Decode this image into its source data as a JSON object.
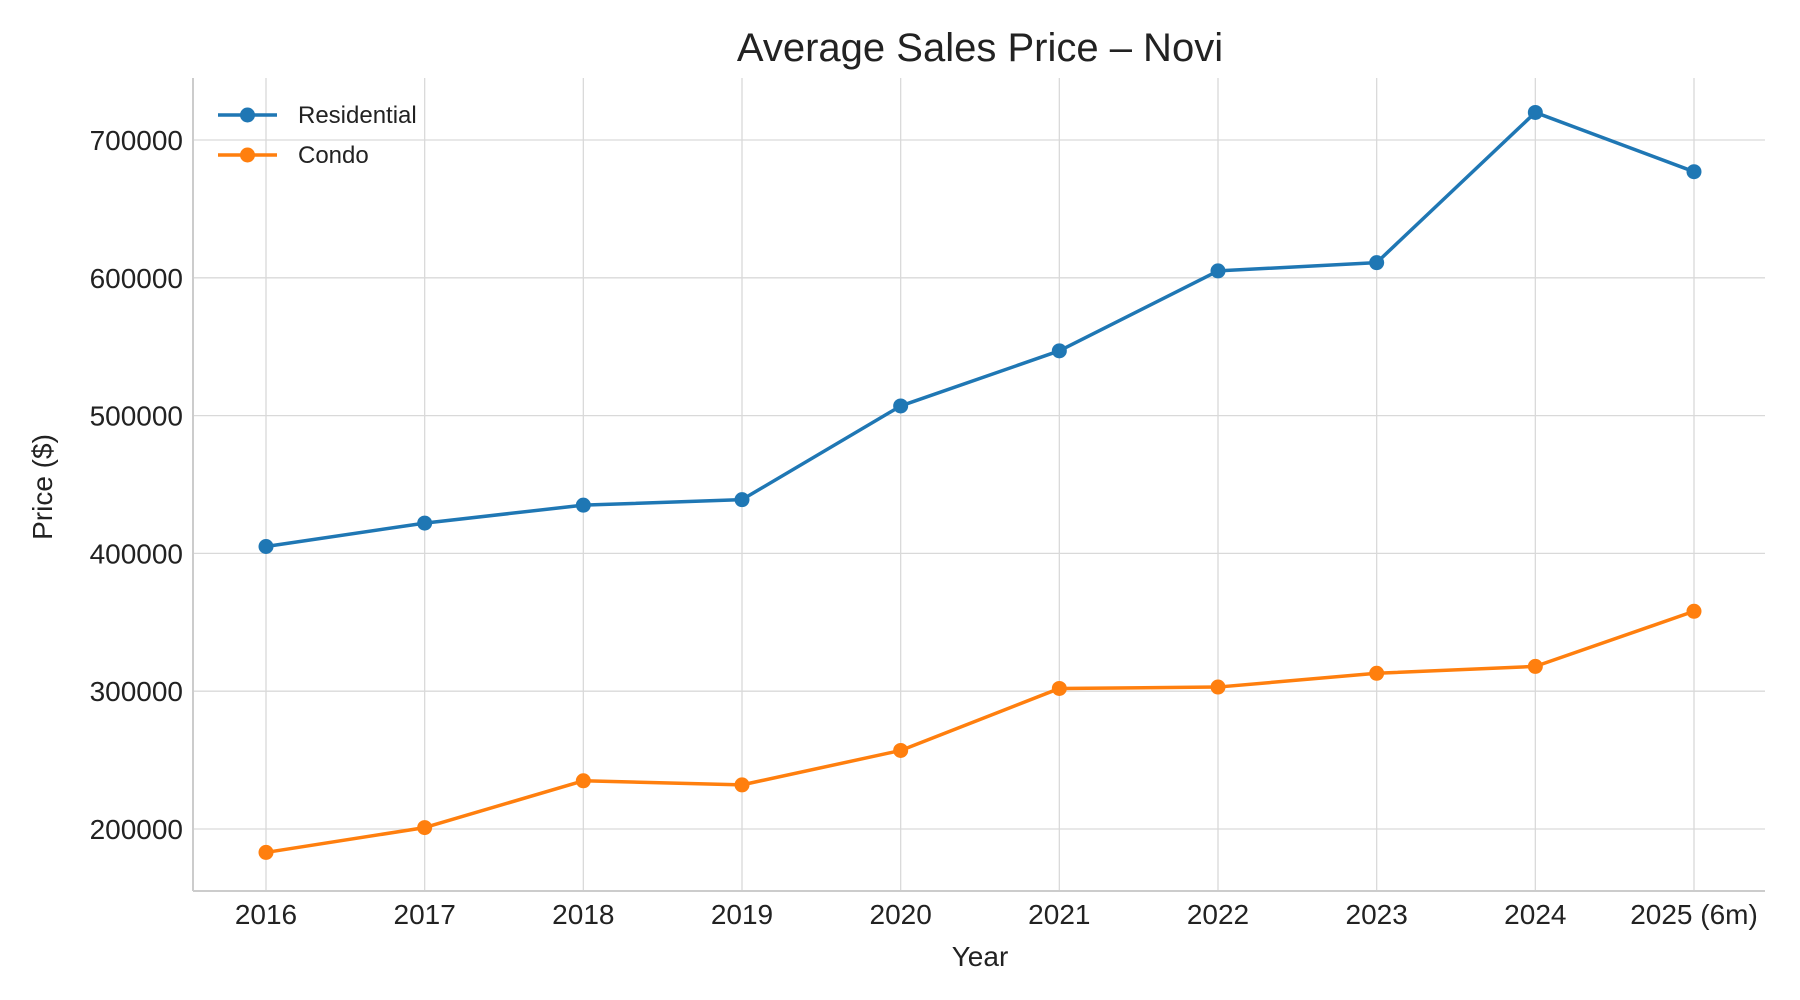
{
  "chart_data": {
    "type": "line",
    "title": "Average Sales Price – Novi",
    "xlabel": "Year",
    "ylabel": "Price ($)",
    "categories": [
      "2016",
      "2017",
      "2018",
      "2019",
      "2020",
      "2021",
      "2022",
      "2023",
      "2024",
      "2025 (6m)"
    ],
    "y_ticks": [
      200000,
      300000,
      400000,
      500000,
      600000,
      700000
    ],
    "ylim": [
      155000,
      745000
    ],
    "grid": true,
    "legend_position": "top-left",
    "series": [
      {
        "name": "Residential",
        "color": "#1f77b4",
        "values": [
          405000,
          422000,
          435000,
          439000,
          507000,
          547000,
          605000,
          611000,
          720000,
          677000
        ]
      },
      {
        "name": "Condo",
        "color": "#ff7f0e",
        "values": [
          183000,
          201000,
          235000,
          232000,
          257000,
          302000,
          303000,
          313000,
          318000,
          358000
        ]
      }
    ]
  }
}
